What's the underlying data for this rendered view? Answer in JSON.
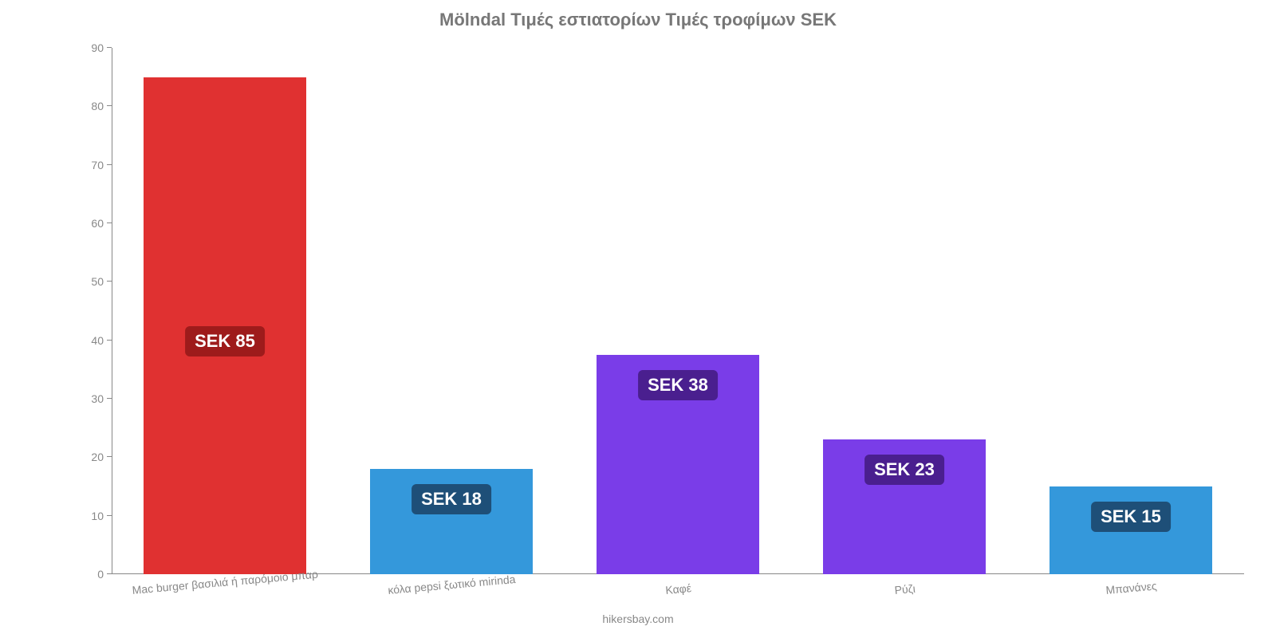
{
  "chart": {
    "type": "bar",
    "title": "Mölndal Τιμές εστιατορίων Τιμές τροφίμων SEK",
    "title_fontsize": 22,
    "title_color": "#777777",
    "background_color": "#ffffff",
    "axis_color": "#888888",
    "tick_font_color": "#888888",
    "tick_fontsize": 14,
    "ylim": [
      0,
      90
    ],
    "ytick_step": 10,
    "yticks": [
      0,
      10,
      20,
      30,
      40,
      50,
      60,
      70,
      80,
      90
    ],
    "bar_width_ratio": 0.72,
    "x_label_rotation_deg": -5,
    "categories": [
      "Mac burger βασιλιά ή παρόμοιο μπαρ",
      "κόλα pepsi ξωτικό mirinda",
      "Καφέ",
      "Ρύζι",
      "Μπανάνες"
    ],
    "values": [
      85,
      18,
      37.5,
      23,
      15
    ],
    "value_labels": [
      "SEK 85",
      "SEK 18",
      "SEK 38",
      "SEK 23",
      "SEK 15"
    ],
    "bar_colors": [
      "#e03131",
      "#3498db",
      "#7a3de8",
      "#7a3de8",
      "#3498db"
    ],
    "label_bg_colors": [
      "#9e1b1b",
      "#1e4f78",
      "#4a1f8f",
      "#4a1f8f",
      "#1e4f78"
    ],
    "label_fontsize": 22,
    "label_offset_value": 40,
    "attribution": "hikersbay.com",
    "attribution_color": "#888888",
    "attribution_fontsize": 14
  }
}
